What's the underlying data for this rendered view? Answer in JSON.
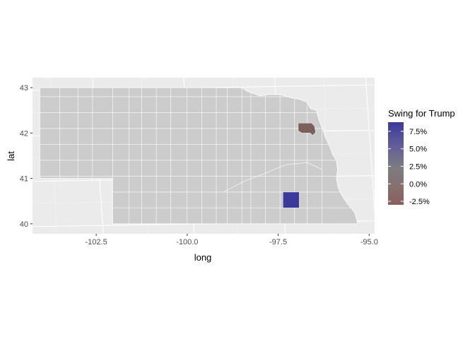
{
  "chart_data": {
    "type": "choropleth",
    "title": "",
    "xlabel": "long",
    "ylabel": "lat",
    "xlim": [
      -104.25,
      -94.85
    ],
    "ylim": [
      39.78,
      43.22
    ],
    "x_ticks": [
      -102.5,
      -100.0,
      -97.5,
      -95.0
    ],
    "x_tick_labels": [
      "-102.5",
      "-100.0",
      "-97.5",
      "-95.0"
    ],
    "y_ticks": [
      40,
      41,
      42,
      43
    ],
    "y_tick_labels": [
      "40",
      "41",
      "42",
      "43"
    ],
    "grid": true,
    "region": "Nebraska counties",
    "default_fill": "#cccccc",
    "highlighted_counties": [
      {
        "swing_pct": -3.0,
        "fill": "#7a5f5c",
        "approx_center": {
          "long": -96.65,
          "lat": 42.1
        }
      },
      {
        "swing_pct": 8.8,
        "fill": "#3b3a9a",
        "approx_center": {
          "long": -97.05,
          "lat": 40.45
        }
      }
    ],
    "legend": {
      "title": "Swing for Trump",
      "placement": "right",
      "range": [
        -3.0,
        8.8
      ],
      "low_color": "#8b5f5c",
      "mid_color": "#7f7f7f",
      "high_color": "#3b3a9a",
      "breaks": [
        7.5,
        5.0,
        2.5,
        0.0,
        -2.5
      ],
      "labels": [
        "7.5%",
        "5.0%",
        "2.5%",
        "0.0%",
        "-2.5%"
      ]
    }
  }
}
